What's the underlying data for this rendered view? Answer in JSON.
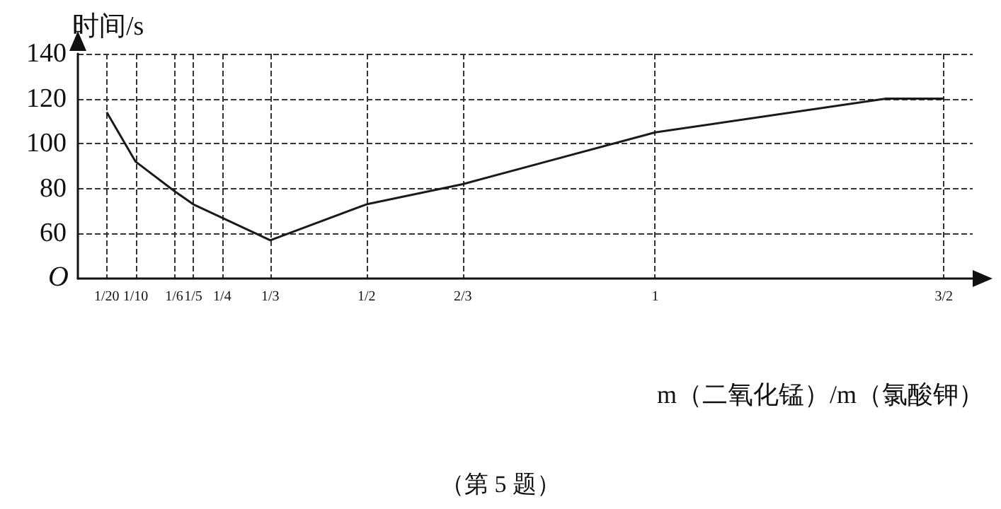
{
  "chart_data": {
    "type": "line",
    "xlabel": "m（二氧化锰）/m（氯酸钾）",
    "ylabel": "时间/s",
    "x": [
      0.05,
      0.1,
      0.1667,
      0.2,
      0.25,
      0.3333,
      0.5,
      0.6667,
      1,
      1.4,
      1.5
    ],
    "series": [
      {
        "color": "#1a1a1a",
        "values": [
          114,
          92,
          79,
          73,
          67,
          57,
          73,
          82,
          105,
          120,
          120
        ]
      }
    ],
    "xlim": [
      0,
      1.55
    ],
    "ylim": [
      40,
      140
    ],
    "xticks": [
      {
        "value": 0.05,
        "label": "1/20"
      },
      {
        "value": 0.1,
        "label": "1/10"
      },
      {
        "value": 0.1667,
        "label": "1/6"
      },
      {
        "value": 0.2,
        "label": "1/5"
      },
      {
        "value": 0.25,
        "label": "1/4"
      },
      {
        "value": 0.3333,
        "label": "1/3"
      },
      {
        "value": 0.5,
        "label": "1/2"
      },
      {
        "value": 0.6667,
        "label": "2/3"
      },
      {
        "value": 1,
        "label": "1"
      },
      {
        "value": 1.5,
        "label": "3/2"
      }
    ],
    "yticks": [
      60,
      80,
      100,
      120,
      140
    ],
    "grid": true,
    "marker": "none",
    "line_style": "solid",
    "annotations": [
      "O",
      "（第 5 题）"
    ]
  }
}
